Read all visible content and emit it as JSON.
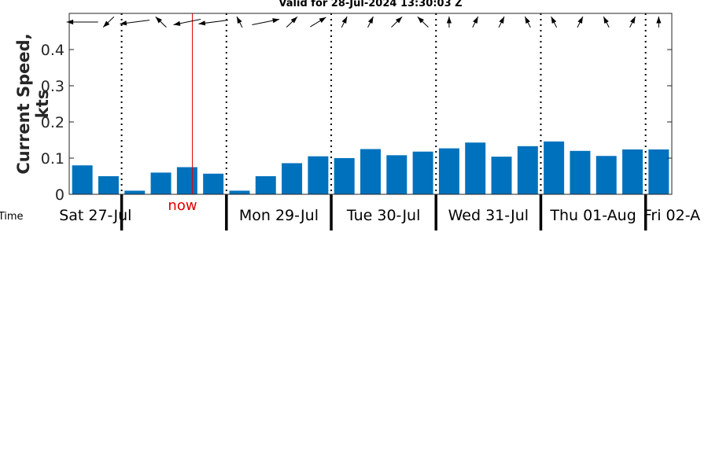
{
  "chart_data": {
    "type": "bar",
    "title": "Valid for 28-Jul-2024 13:30:03 Z",
    "ylabel": "Current Speed, kts",
    "xlabel": "l Time",
    "ylim": [
      0,
      0.5
    ],
    "yticks": [
      "0",
      "0.1",
      "0.2",
      "0.3",
      "0.4"
    ],
    "yticks_values": [
      0,
      0.1,
      0.2,
      0.3,
      0.4
    ],
    "x": [
      1,
      2,
      3,
      4,
      5,
      6,
      7,
      8,
      9,
      10,
      11,
      12,
      13,
      14,
      15,
      16,
      17,
      18,
      19,
      20,
      21,
      22,
      23
    ],
    "values": [
      0.08,
      0.05,
      0.01,
      0.06,
      0.075,
      0.057,
      0.01,
      0.05,
      0.086,
      0.105,
      0.1,
      0.125,
      0.108,
      0.118,
      0.127,
      0.143,
      0.104,
      0.133,
      0.146,
      0.12,
      0.106,
      0.124,
      0.124
    ],
    "bar_color": "#0072bd",
    "now_x": 5.2,
    "now_label": "now",
    "now_color": "#e00000",
    "day_boundaries": [
      2.5,
      6.5,
      10.5,
      14.5,
      18.5,
      22.5
    ],
    "day_labels": [
      {
        "label": "Sat 27-Jul",
        "x": 1.5
      },
      {
        "label": "Mon 29-Jul",
        "x": 8.5
      },
      {
        "label": "Tue 30-Jul",
        "x": 12.5
      },
      {
        "label": "Wed 31-Jul",
        "x": 16.5
      },
      {
        "label": "Thu 01-Aug",
        "x": 20.5
      },
      {
        "label": "Fri 02-A",
        "x": 23.5
      }
    ],
    "direction_arrows_deg": [
      180,
      250,
      200,
      110,
      210,
      200,
      100,
      30,
      70,
      60,
      80,
      80,
      70,
      110,
      90,
      80,
      80,
      100,
      100,
      80,
      100,
      80,
      90
    ],
    "grid": false
  }
}
